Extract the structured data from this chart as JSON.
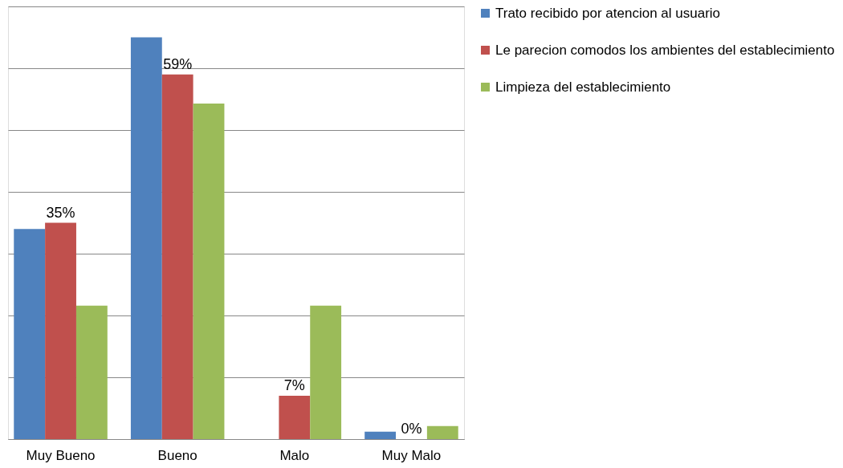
{
  "chart_data": {
    "type": "bar",
    "categories": [
      "Muy Bueno",
      "Bueno",
      "Malo",
      "Muy Malo"
    ],
    "series": [
      {
        "name": "Trato recibido por atencion al usuario",
        "color": "#4f81bd",
        "values": [
          34,
          65,
          0,
          1.2
        ]
      },
      {
        "name": "Le parecion comodos los ambientes del establecimiento",
        "color": "#c0504d",
        "values": [
          35,
          59,
          7,
          0
        ],
        "value_labels": [
          "35%",
          "59%",
          "7%",
          "0%"
        ]
      },
      {
        "name": "Limpieza del establecimiento",
        "color": "#9bbb59",
        "values": [
          21.6,
          54.3,
          21.6,
          2.1
        ]
      }
    ],
    "ylim": [
      0,
      70
    ],
    "yticks": [
      {
        "value": 0,
        "label": null
      },
      {
        "value": 10,
        "label": null
      },
      {
        "value": 20,
        "label": null
      },
      {
        "value": 30,
        "label": null
      },
      {
        "value": 40,
        "label": null
      },
      {
        "value": 50,
        "label": null
      },
      {
        "value": 60,
        "label": null
      },
      {
        "value": 70,
        "label": null
      }
    ],
    "grid": "y",
    "legend": "right",
    "tick_labels": "x"
  }
}
